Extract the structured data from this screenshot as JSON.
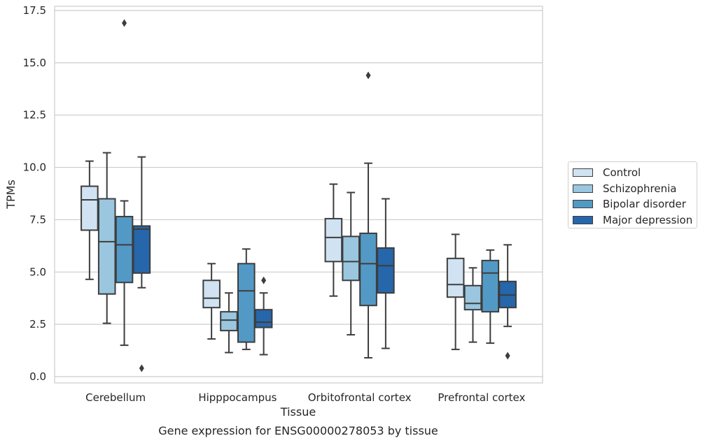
{
  "chart_data": {
    "type": "box",
    "caption": "Gene expression for ENSG00000278053 by tissue",
    "xlabel": "Tissue",
    "ylabel": "TPMs",
    "ylim": [
      -0.3,
      17.7
    ],
    "yticks": [
      "0.0",
      "2.5",
      "5.0",
      "7.5",
      "10.0",
      "12.5",
      "15.0",
      "17.5"
    ],
    "ytick_values": [
      0,
      2.5,
      5,
      7.5,
      10,
      12.5,
      15,
      17.5
    ],
    "grid": "horizontal",
    "legend_position": "right",
    "categories": [
      "Cerebellum",
      "Hipppocampus",
      "Orbitofrontal cortex",
      "Prefrontal cortex"
    ],
    "series": [
      {
        "name": "Control",
        "color": "#d1e2f2",
        "boxes": [
          {
            "whisker_low": 4.65,
            "q1": 7.0,
            "median": 8.45,
            "q3": 9.1,
            "whisker_high": 10.3,
            "outliers": []
          },
          {
            "whisker_low": 1.8,
            "q1": 3.3,
            "median": 3.75,
            "q3": 4.6,
            "whisker_high": 5.4,
            "outliers": []
          },
          {
            "whisker_low": 3.85,
            "q1": 5.5,
            "median": 6.65,
            "q3": 7.55,
            "whisker_high": 9.2,
            "outliers": []
          },
          {
            "whisker_low": 1.3,
            "q1": 3.8,
            "median": 4.4,
            "q3": 5.65,
            "whisker_high": 6.8,
            "outliers": []
          }
        ]
      },
      {
        "name": "Schizophrenia",
        "color": "#9ac6df",
        "boxes": [
          {
            "whisker_low": 2.55,
            "q1": 3.95,
            "median": 6.45,
            "q3": 8.5,
            "whisker_high": 10.7,
            "outliers": []
          },
          {
            "whisker_low": 1.15,
            "q1": 2.2,
            "median": 2.7,
            "q3": 3.1,
            "whisker_high": 4.0,
            "outliers": []
          },
          {
            "whisker_low": 2.0,
            "q1": 4.6,
            "median": 5.5,
            "q3": 6.7,
            "whisker_high": 8.8,
            "outliers": []
          },
          {
            "whisker_low": 1.65,
            "q1": 3.2,
            "median": 3.5,
            "q3": 4.35,
            "whisker_high": 5.2,
            "outliers": []
          }
        ]
      },
      {
        "name": "Bipolar disorder",
        "color": "#5399c6",
        "boxes": [
          {
            "whisker_low": 1.5,
            "q1": 4.5,
            "median": 6.3,
            "q3": 7.65,
            "whisker_high": 8.4,
            "outliers": [
              16.9
            ]
          },
          {
            "whisker_low": 1.3,
            "q1": 1.65,
            "median": 4.1,
            "q3": 5.4,
            "whisker_high": 6.1,
            "outliers": []
          },
          {
            "whisker_low": 0.9,
            "q1": 3.4,
            "median": 5.4,
            "q3": 6.85,
            "whisker_high": 10.2,
            "outliers": [
              14.4
            ]
          },
          {
            "whisker_low": 1.6,
            "q1": 3.1,
            "median": 4.95,
            "q3": 5.55,
            "whisker_high": 6.05,
            "outliers": []
          }
        ]
      },
      {
        "name": "Major depression",
        "color": "#2666aa",
        "boxes": [
          {
            "whisker_low": 4.25,
            "q1": 4.95,
            "median": 7.05,
            "q3": 7.2,
            "whisker_high": 10.5,
            "outliers": [
              0.4
            ]
          },
          {
            "whisker_low": 1.05,
            "q1": 2.35,
            "median": 2.6,
            "q3": 3.2,
            "whisker_high": 4.0,
            "outliers": [
              4.6
            ]
          },
          {
            "whisker_low": 1.35,
            "q1": 4.0,
            "median": 5.3,
            "q3": 6.15,
            "whisker_high": 8.5,
            "outliers": []
          },
          {
            "whisker_low": 2.4,
            "q1": 3.3,
            "median": 3.9,
            "q3": 4.55,
            "whisker_high": 6.3,
            "outliers": [
              1.0
            ]
          }
        ]
      }
    ]
  }
}
